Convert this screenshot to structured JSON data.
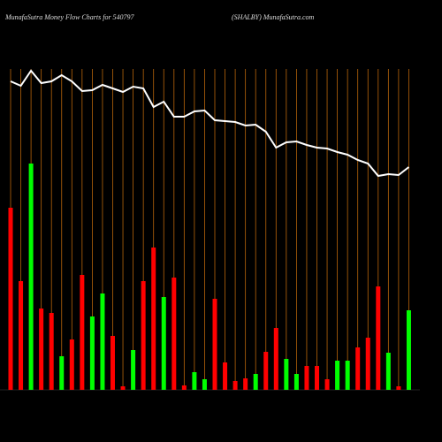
{
  "chart_data": {
    "type": "bar",
    "title": "MunafaSutra  Money Flow  Charts for 540797",
    "subtitle": "(SHALBY) MunafaSutra.com",
    "values": [
      206,
      123,
      256,
      92,
      87,
      38,
      57,
      130,
      83,
      109,
      61,
      4,
      45,
      123,
      161,
      105,
      127,
      5,
      20,
      12,
      103,
      31,
      10,
      13,
      18,
      43,
      70,
      35,
      18,
      27,
      27,
      12,
      33,
      33,
      48,
      59,
      117,
      42,
      4,
      90
    ],
    "colors": [
      "#ff0000",
      "#ff0000",
      "#00ff00",
      "#ff0000",
      "#ff0000",
      "#00ff00",
      "#ff0000",
      "#ff0000",
      "#00ff00",
      "#00ff00",
      "#ff0000",
      "#ff0000",
      "#00ff00",
      "#ff0000",
      "#ff0000",
      "#00ff00",
      "#ff0000",
      "#ff0000",
      "#00ff00",
      "#00ff00",
      "#ff0000",
      "#ff0000",
      "#ff0000",
      "#ff0000",
      "#00ff00",
      "#ff0000",
      "#ff0000",
      "#00ff00",
      "#00ff00",
      "#ff0000",
      "#ff0000",
      "#ff0000",
      "#00ff00",
      "#00ff00",
      "#ff0000",
      "#ff0000",
      "#ff0000",
      "#00ff00",
      "#ff0000",
      "#00ff00"
    ],
    "line": {
      "color": "#ffffff",
      "values": [
        349,
        344,
        361,
        347,
        349,
        356,
        349,
        338,
        339,
        345,
        341,
        337,
        343,
        341,
        320,
        326,
        309,
        309,
        315,
        316,
        305,
        304,
        303,
        299,
        300,
        292,
        274,
        280,
        281,
        277,
        274,
        273,
        269,
        266,
        260,
        256,
        242,
        244,
        243,
        252
      ]
    }
  }
}
